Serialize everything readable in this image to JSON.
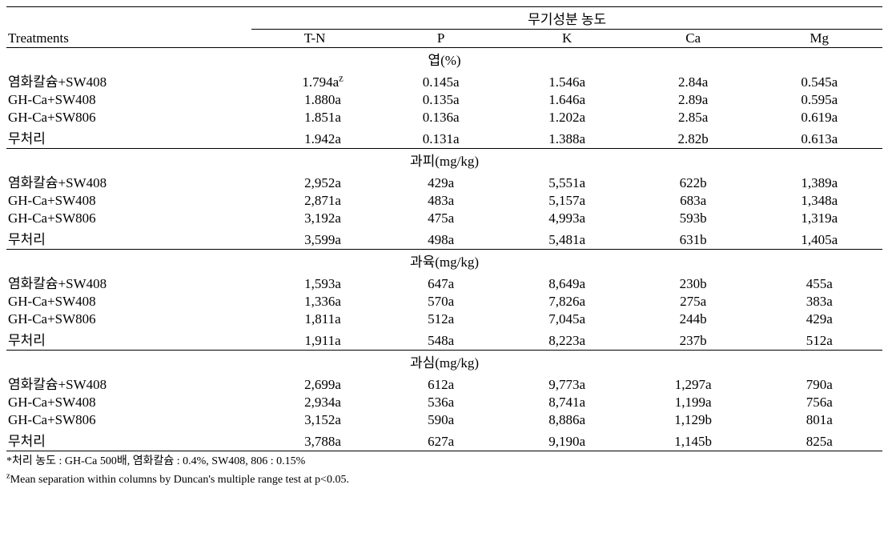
{
  "header": {
    "treatments": "Treatments",
    "group_title": "무기성분 농도",
    "columns": [
      "T-N",
      "P",
      "K",
      "Ca",
      "Mg"
    ]
  },
  "sections": [
    {
      "label": "엽(%)",
      "rows": [
        {
          "name": "염화칼슘+SW408",
          "tn": "1.794a",
          "tn_sup": "z",
          "p": "0.145a",
          "k": "1.546a",
          "ca": "2.84a",
          "mg": "0.545a"
        },
        {
          "name": "GH-Ca+SW408",
          "tn": "1.880a",
          "p": "0.135a",
          "k": "1.646a",
          "ca": "2.89a",
          "mg": "0.595a"
        },
        {
          "name": "GH-Ca+SW806",
          "tn": "1.851a",
          "p": "0.136a",
          "k": "1.202a",
          "ca": "2.85a",
          "mg": "0.619a"
        },
        {
          "name": "무처리",
          "tn": "1.942a",
          "p": "0.131a",
          "k": "1.388a",
          "ca": "2.82b",
          "mg": "0.613a"
        }
      ]
    },
    {
      "label": "과피(mg/kg)",
      "rows": [
        {
          "name": "염화칼슘+SW408",
          "tn": "2,952a",
          "p": "429a",
          "k": "5,551a",
          "ca": "622b",
          "mg": "1,389a"
        },
        {
          "name": "GH-Ca+SW408",
          "tn": "2,871a",
          "p": "483a",
          "k": "5,157a",
          "ca": "683a",
          "mg": "1,348a"
        },
        {
          "name": "GH-Ca+SW806",
          "tn": "3,192a",
          "p": "475a",
          "k": "4,993a",
          "ca": "593b",
          "mg": "1,319a"
        },
        {
          "name": "무처리",
          "tn": "3,599a",
          "p": "498a",
          "k": "5,481a",
          "ca": "631b",
          "mg": "1,405a"
        }
      ]
    },
    {
      "label": "과육(mg/kg)",
      "rows": [
        {
          "name": "염화칼슘+SW408",
          "tn": "1,593a",
          "p": "647a",
          "k": "8,649a",
          "ca": "230b",
          "mg": "455a"
        },
        {
          "name": "GH-Ca+SW408",
          "tn": "1,336a",
          "p": "570a",
          "k": "7,826a",
          "ca": "275a",
          "mg": "383a"
        },
        {
          "name": "GH-Ca+SW806",
          "tn": "1,811a",
          "p": "512a",
          "k": "7,045a",
          "ca": "244b",
          "mg": "429a"
        },
        {
          "name": "무처리",
          "tn": "1,911a",
          "p": "548a",
          "k": "8,223a",
          "ca": "237b",
          "mg": "512a"
        }
      ]
    },
    {
      "label": "과심(mg/kg)",
      "rows": [
        {
          "name": "염화칼슘+SW408",
          "tn": "2,699a",
          "p": "612a",
          "k": "9,773a",
          "ca": "1,297a",
          "mg": "790a"
        },
        {
          "name": "GH-Ca+SW408",
          "tn": "2,934a",
          "p": "536a",
          "k": "8,741a",
          "ca": "1,199a",
          "mg": "756a"
        },
        {
          "name": "GH-Ca+SW806",
          "tn": "3,152a",
          "p": "590a",
          "k": "8,886a",
          "ca": "1,129b",
          "mg": "801a"
        },
        {
          "name": "무처리",
          "tn": "3,788a",
          "p": "627a",
          "k": "9,190a",
          "ca": "1,145b",
          "mg": "825a"
        }
      ]
    }
  ],
  "footnotes": {
    "star": "*처리 농도 : GH-Ca 500배, 염화칼슘 : 0.4%, SW408, 806 : 0.15%",
    "z_sup": "z",
    "z_text": "Mean separation within columns by Duncan's multiple range test at p<0.05."
  },
  "style": {
    "border_color": "#000000",
    "background_color": "#ffffff",
    "text_color": "#000000",
    "header_fontsize_pt": 13,
    "body_fontsize_pt": 13,
    "footnote_fontsize_pt": 10.5,
    "font_family": "Times New Roman"
  }
}
